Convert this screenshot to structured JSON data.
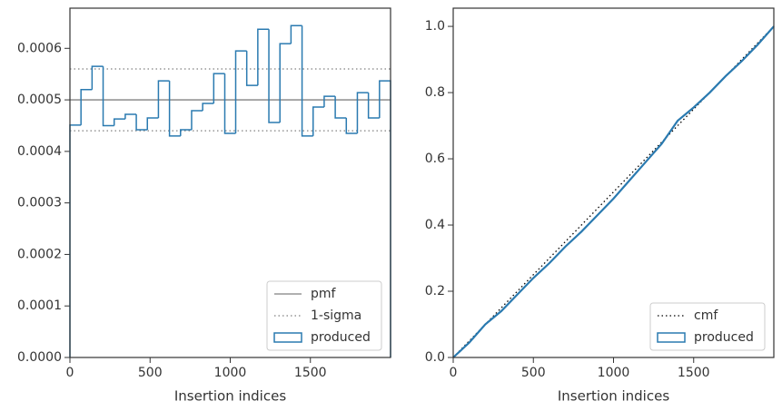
{
  "chart_data": [
    {
      "type": "histogram",
      "xlabel": "Insertion indices",
      "bins": [
        0,
        69,
        138,
        207,
        276,
        345,
        414,
        483,
        552,
        621,
        690,
        759,
        828,
        897,
        966,
        1034,
        1103,
        1172,
        1241,
        1310,
        1379,
        1448,
        1517,
        1586,
        1655,
        1724,
        1793,
        1862,
        1931,
        2000
      ],
      "series": [
        {
          "name": "produced",
          "color": "#2a7ab0",
          "legend_marker": "patch",
          "values": [
            0.000451,
            0.00052,
            0.000565,
            0.00045,
            0.000463,
            0.000472,
            0.000442,
            0.000465,
            0.000537,
            0.00043,
            0.000442,
            0.000479,
            0.000493,
            0.000551,
            0.000435,
            0.000595,
            0.000528,
            0.000637,
            0.000456,
            0.000609,
            0.000644,
            0.00043,
            0.000486,
            0.000507,
            0.000465,
            0.000435,
            0.000514,
            0.000465,
            0.000537
          ]
        }
      ],
      "hlines": [
        {
          "name": "pmf",
          "color": "#808080",
          "style": "solid",
          "values": [
            0.0005
          ]
        },
        {
          "name": "1-sigma",
          "color": "#808080",
          "style": "dotted",
          "values": [
            0.00044,
            0.00056
          ]
        }
      ],
      "xlim": [
        0,
        2000
      ],
      "xticks": [
        0,
        500,
        1000,
        1500
      ],
      "ylim": [
        0,
        0.000678
      ],
      "yticks": [
        {
          "value": 0,
          "label": "0.0000"
        },
        {
          "value": 0.0001,
          "label": "0.0001"
        },
        {
          "value": 0.0002,
          "label": "0.0002"
        },
        {
          "value": 0.0003,
          "label": "0.0003"
        },
        {
          "value": 0.0004,
          "label": "0.0004"
        },
        {
          "value": 0.0005,
          "label": "0.0005"
        },
        {
          "value": 0.0006,
          "label": "0.0006"
        }
      ],
      "legend": "lower right"
    },
    {
      "type": "line",
      "xlabel": "Insertion indices",
      "series": [
        {
          "name": "cmf",
          "color": "#000000",
          "style": "dotted",
          "x": [
            0,
            2000
          ],
          "values": [
            0,
            1
          ]
        },
        {
          "name": "produced",
          "color": "#2a7ab0",
          "style": "solid",
          "legend_marker": "patch",
          "x": [
            0,
            100,
            200,
            300,
            400,
            500,
            600,
            700,
            800,
            900,
            1000,
            1100,
            1200,
            1300,
            1400,
            1500,
            1600,
            1700,
            1800,
            1900,
            2000
          ],
          "values": [
            0,
            0.045,
            0.1,
            0.14,
            0.19,
            0.24,
            0.285,
            0.335,
            0.38,
            0.43,
            0.48,
            0.535,
            0.59,
            0.645,
            0.715,
            0.755,
            0.8,
            0.85,
            0.895,
            0.945,
            1.0
          ]
        }
      ],
      "xlim": [
        0,
        2000
      ],
      "xticks": [
        0,
        500,
        1000,
        1500
      ],
      "ylim": [
        0,
        1.055
      ],
      "yticks": [
        {
          "value": 0,
          "label": "0.0"
        },
        {
          "value": 0.2,
          "label": "0.2"
        },
        {
          "value": 0.4,
          "label": "0.4"
        },
        {
          "value": 0.6,
          "label": "0.6"
        },
        {
          "value": 0.8,
          "label": "0.8"
        },
        {
          "value": 1,
          "label": "1.0"
        }
      ],
      "legend": "lower right"
    }
  ]
}
